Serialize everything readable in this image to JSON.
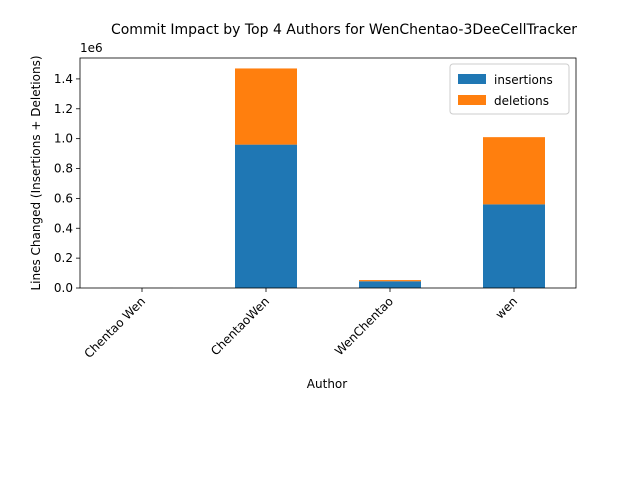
{
  "chart_data": {
    "type": "bar",
    "stacked": true,
    "title": "Commit Impact by Top 4 Authors for WenChentao-3DeeCellTracker",
    "xlabel": "Author",
    "ylabel": "Lines Changed (Insertions + Deletions)",
    "y_offset_label": "1e6",
    "categories": [
      "Chentao Wen",
      "ChentaoWen",
      "WenChentao",
      "wen"
    ],
    "series": [
      {
        "name": "insertions",
        "color": "#1f77b4",
        "values": [
          500,
          960000,
          45000,
          560000
        ]
      },
      {
        "name": "deletions",
        "color": "#ff7f0e",
        "values": [
          200,
          510000,
          8000,
          450000
        ]
      }
    ],
    "ylim": [
      0,
      1540000
    ],
    "yticks": [
      0,
      0.2,
      0.4,
      0.6,
      0.8,
      1.0,
      1.2,
      1.4
    ],
    "ytick_scale": 1000000,
    "legend_position": "top-right",
    "grid": false
  }
}
